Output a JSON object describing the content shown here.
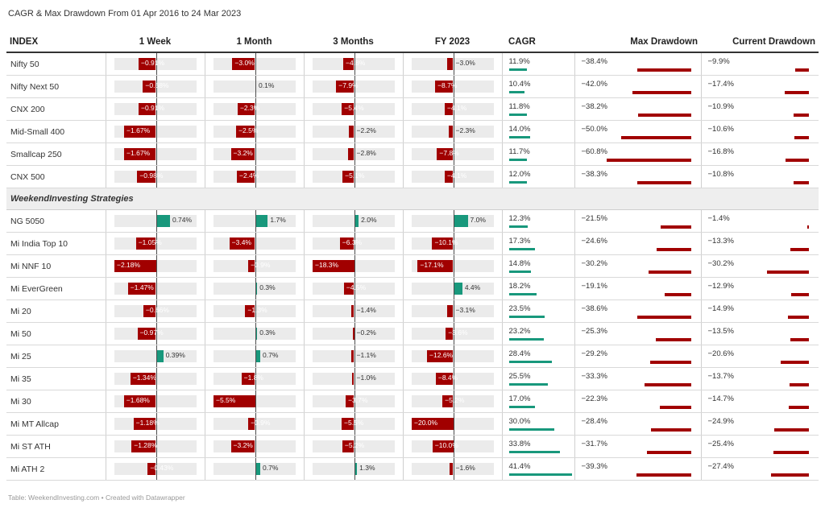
{
  "title": "CAGR & Max Drawdown From 01 Apr 2016 to 24 Mar 2023",
  "footer": "Table: WeekendInvesting.com • Created with Datawrapper",
  "colors": {
    "positive": "#18987c",
    "negative": "#a10000",
    "bar_background": "#ebebeb"
  },
  "chart_data": {
    "type": "table",
    "columns": [
      "INDEX",
      "1 Week",
      "1 Month",
      "3 Months",
      "FY 2023",
      "CAGR",
      "Max Drawdown",
      "Current Drawdown"
    ],
    "groups": [
      {
        "label": "",
        "rows": [
          {
            "name": "Nifty 50",
            "w1": -0.91,
            "m1": -3.0,
            "m3": -4.8,
            "fy": -3.0,
            "cagr": 11.9,
            "maxdd": -38.4,
            "curdd": -9.9
          },
          {
            "name": "Nifty Next 50",
            "w1": -0.68,
            "m1": 0.1,
            "m3": -7.9,
            "fy": -8.7,
            "cagr": 10.4,
            "maxdd": -42.0,
            "curdd": -17.4
          },
          {
            "name": "CNX 200",
            "w1": -0.91,
            "m1": -2.3,
            "m3": -5.4,
            "fy": -4.1,
            "cagr": 11.8,
            "maxdd": -38.2,
            "curdd": -10.9
          },
          {
            "name": "Mid-Small 400",
            "w1": -1.67,
            "m1": -2.5,
            "m3": -2.2,
            "fy": -2.3,
            "cagr": 14.0,
            "maxdd": -50.0,
            "curdd": -10.6
          },
          {
            "name": "Smallcap 250",
            "w1": -1.67,
            "m1": -3.2,
            "m3": -2.8,
            "fy": -7.8,
            "cagr": 11.7,
            "maxdd": -60.8,
            "curdd": -16.8
          },
          {
            "name": "CNX 500",
            "w1": -0.98,
            "m1": -2.4,
            "m3": -5.1,
            "fy": -4.1,
            "cagr": 12.0,
            "maxdd": -38.3,
            "curdd": -10.8
          }
        ]
      },
      {
        "label": "WeekendInvesting Strategies",
        "rows": [
          {
            "name": "NG 5050",
            "w1": 0.74,
            "m1": 1.7,
            "m3": 2.0,
            "fy": 7.0,
            "cagr": 12.3,
            "maxdd": -21.5,
            "curdd": -1.4
          },
          {
            "name": "Mi India Top 10",
            "w1": -1.05,
            "m1": -3.4,
            "m3": -6.3,
            "fy": -10.1,
            "cagr": 17.3,
            "maxdd": -24.6,
            "curdd": -13.3
          },
          {
            "name": "Mi NNF 10",
            "w1": -2.18,
            "m1": -0.9,
            "m3": -18.3,
            "fy": -17.1,
            "cagr": 14.8,
            "maxdd": -30.2,
            "curdd": -30.2
          },
          {
            "name": "Mi EverGreen",
            "w1": -1.47,
            "m1": 0.3,
            "m3": -4.5,
            "fy": 4.4,
            "cagr": 18.2,
            "maxdd": -19.1,
            "curdd": -12.9
          },
          {
            "name": "Mi 20",
            "w1": -0.66,
            "m1": -1.3,
            "m3": -1.4,
            "fy": -3.1,
            "cagr": 23.5,
            "maxdd": -38.6,
            "curdd": -14.9
          },
          {
            "name": "Mi 50",
            "w1": -0.97,
            "m1": 0.3,
            "m3": -0.2,
            "fy": -3.6,
            "cagr": 23.2,
            "maxdd": -25.3,
            "curdd": -13.5
          },
          {
            "name": "Mi 25",
            "w1": 0.39,
            "m1": 0.7,
            "m3": -1.1,
            "fy": -12.6,
            "cagr": 28.4,
            "maxdd": -29.2,
            "curdd": -20.6
          },
          {
            "name": "Mi 35",
            "w1": -1.34,
            "m1": -1.8,
            "m3": -1.0,
            "fy": -8.4,
            "cagr": 25.5,
            "maxdd": -33.3,
            "curdd": -13.7
          },
          {
            "name": "Mi 30",
            "w1": -1.68,
            "m1": -5.5,
            "m3": -3.7,
            "fy": -5.2,
            "cagr": 17.0,
            "maxdd": -22.3,
            "curdd": -14.7
          },
          {
            "name": "Mi MT Allcap",
            "w1": -1.18,
            "m1": -0.9,
            "m3": -5.5,
            "fy": -20.0,
            "cagr": 30.0,
            "maxdd": -28.4,
            "curdd": -24.9
          },
          {
            "name": "Mi ST ATH",
            "w1": -1.28,
            "m1": -3.2,
            "m3": -5.2,
            "fy": -10.0,
            "cagr": 33.8,
            "maxdd": -31.7,
            "curdd": -25.4
          },
          {
            "name": "Mi ATH 2",
            "w1": -0.43,
            "m1": 0.7,
            "m3": 1.3,
            "fy": -1.6,
            "cagr": 41.4,
            "maxdd": -39.3,
            "curdd": -27.4
          }
        ]
      }
    ],
    "scales": {
      "w1": {
        "min": -2.18,
        "max": 2.18
      },
      "m1": {
        "min": -5.5,
        "max": 5.5
      },
      "m3": {
        "min": -18.3,
        "max": 18.3
      },
      "fy": {
        "min": -20.0,
        "max": 20.0
      },
      "cagr": {
        "max": 41.4
      },
      "maxdd": {
        "max": 60.8
      },
      "curdd": {
        "max": 30.2
      }
    }
  }
}
